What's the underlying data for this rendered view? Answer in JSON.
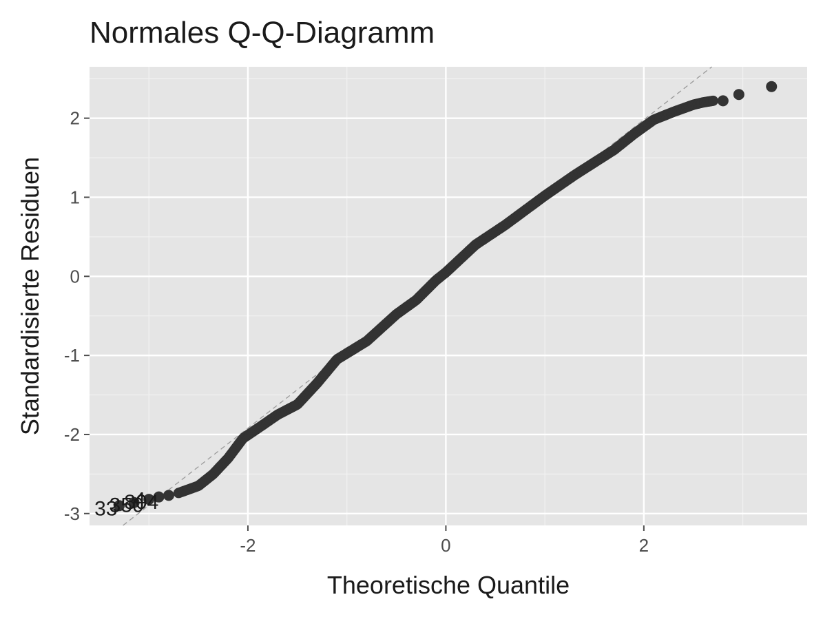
{
  "chart_data": {
    "type": "scatter",
    "title": "Normales Q-Q-Diagramm",
    "xlabel": "Theoretische Quantile",
    "ylabel": "Standardisierte Residuen",
    "xlim": [
      -3.6,
      3.65
    ],
    "ylim": [
      -3.15,
      2.65
    ],
    "x_ticks": [
      -2,
      0,
      2
    ],
    "x_tick_labels": [
      "-2",
      "0",
      "2"
    ],
    "y_ticks": [
      -3,
      -2,
      -1,
      0,
      1,
      2
    ],
    "y_tick_labels": [
      "-3",
      "-2",
      "-1",
      "0",
      "1",
      "2"
    ],
    "grid": true,
    "background": "#e5e5e5",
    "point_color": "#333333",
    "reference_line": {
      "style": "dashed",
      "color": "#9a9a9a",
      "slope": 0.975,
      "intercept": 0.03
    },
    "curve_knots": {
      "x": [
        -2.7,
        -2.5,
        -2.35,
        -2.2,
        -2.05,
        -1.85,
        -1.7,
        -1.5,
        -1.3,
        -1.1,
        -0.8,
        -0.5,
        -0.3,
        -0.1,
        0.0,
        0.3,
        0.6,
        1.0,
        1.3,
        1.7,
        1.9,
        2.1,
        2.3,
        2.5,
        2.6,
        2.7
      ],
      "y": [
        -2.74,
        -2.65,
        -2.5,
        -2.3,
        -2.05,
        -1.88,
        -1.75,
        -1.62,
        -1.35,
        -1.05,
        -0.82,
        -0.48,
        -0.3,
        -0.05,
        0.05,
        0.4,
        0.65,
        1.02,
        1.28,
        1.6,
        1.8,
        1.98,
        2.08,
        2.17,
        2.2,
        2.22
      ]
    },
    "tail_points": [
      {
        "x": -3.3,
        "y": -2.9
      },
      {
        "x": -3.15,
        "y": -2.86
      },
      {
        "x": -3.0,
        "y": -2.82
      },
      {
        "x": -2.9,
        "y": -2.79
      },
      {
        "x": -2.8,
        "y": -2.77
      },
      {
        "x": 2.8,
        "y": 2.22
      },
      {
        "x": 2.96,
        "y": 2.3
      },
      {
        "x": 3.29,
        "y": 2.4
      }
    ],
    "point_labels": [
      {
        "text": "33",
        "x": -3.3,
        "y": -2.9
      },
      {
        "text": "350",
        "x": -3.15,
        "y": -2.86
      },
      {
        "text": "804",
        "x": -3.0,
        "y": -2.82
      },
      {
        "text": "4",
        "x": -2.9,
        "y": -2.79
      }
    ]
  }
}
